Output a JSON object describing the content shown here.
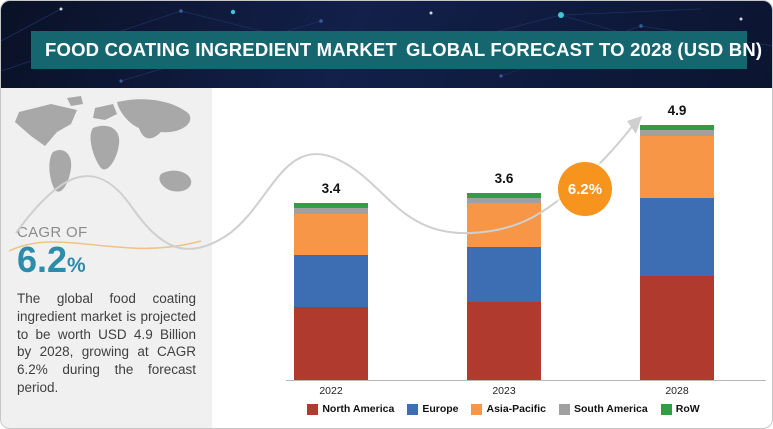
{
  "header": {
    "title_main": "FOOD COATING INGREDIENT MARKET",
    "title_sub": "GLOBAL FORECAST TO 2028 (USD BN)"
  },
  "sidebar": {
    "cagr_label": "CAGR OF",
    "cagr_value": "6.2",
    "cagr_percent_sign": "%",
    "description": "The global food coating ingredient market is projected to be worth USD 4.9 Billion by 2028, growing at CAGR 6.2% during the forecast period."
  },
  "chart_data": {
    "type": "bar",
    "stacked": true,
    "categories": [
      "2022",
      "2023",
      "2028"
    ],
    "totals": [
      "3.4",
      "3.6",
      "4.9"
    ],
    "series": [
      {
        "name": "North America",
        "color": "#b03a2e",
        "values": [
          1.4,
          1.5,
          2.0
        ]
      },
      {
        "name": "Europe",
        "color": "#3d6eb4",
        "values": [
          1.0,
          1.05,
          1.5
        ]
      },
      {
        "name": "Asia-Pacific",
        "color": "#f79646",
        "values": [
          0.8,
          0.85,
          1.2
        ]
      },
      {
        "name": "South America",
        "color": "#a0a0a0",
        "values": [
          0.1,
          0.1,
          0.1
        ]
      },
      {
        "name": "RoW",
        "color": "#2f9e44",
        "values": [
          0.1,
          0.1,
          0.1
        ]
      }
    ],
    "annotation": {
      "growth_badge": "6.2%"
    },
    "legend_position": "bottom",
    "ylim": [
      0,
      5.2
    ],
    "grid": false
  }
}
